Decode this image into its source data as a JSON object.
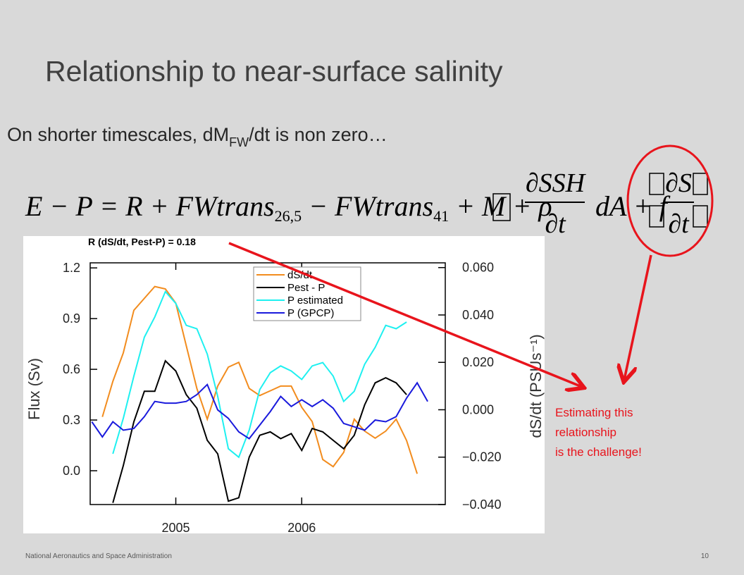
{
  "title": "Relationship to near-surface salinity",
  "subtitle": {
    "before": "On shorter timescales, dM",
    "sub": "FW",
    "after": "/dt is non zero…"
  },
  "equation": {
    "lhs": "E − P = R + FWtrans",
    "sub1": "26,5",
    "mid": " − FWtrans",
    "sub2": "41",
    "rest": " + M + ρ",
    "frac1_num": "∂SSH",
    "frac1_den": "∂t",
    "between": "dA + f",
    "frac2_num": "∂S",
    "frac2_den": "∂t"
  },
  "annotation": [
    "Estimating this",
    "relationship",
    "is the challenge!"
  ],
  "footer": "National Aeronautics and Space Administration",
  "page_number": "10",
  "chart_data": {
    "type": "line",
    "note": "R (dS/dt, Pest-P) = 0.18",
    "ylabel": "Flux (Sv)",
    "y2label": "dS/dt (PSUs⁻¹)",
    "x": [
      2004.333,
      2004.417,
      2004.5,
      2004.583,
      2004.667,
      2004.75,
      2004.833,
      2004.917,
      2005,
      2005.083,
      2005.167,
      2005.25,
      2005.333,
      2005.417,
      2005.5,
      2005.583,
      2005.667,
      2005.75,
      2005.833,
      2005.917,
      2006,
      2006.083,
      2006.167,
      2006.25,
      2006.333,
      2006.417,
      2006.5,
      2006.583,
      2006.667,
      2006.75,
      2006.833,
      2006.917,
      2007
    ],
    "xlim": [
      2004.32,
      2007.14
    ],
    "xticks": [
      2005,
      2006
    ],
    "ylim": [
      -0.2,
      1.23
    ],
    "yticks": [
      {
        "value": 0,
        "label": "0.0"
      },
      0.3,
      0.6,
      0.9,
      1.2
    ],
    "y2lim": [
      -0.04,
      0.062
    ],
    "y2ticks": [
      {
        "value": -0.04,
        "label": "−0.040"
      },
      {
        "value": -0.02,
        "label": "−0.020"
      },
      {
        "value": 0,
        "label": "0.000"
      },
      {
        "value": 0.02,
        "label": "0.020"
      },
      {
        "value": 0.04,
        "label": "0.040"
      },
      {
        "value": 0.06,
        "label": "0.060"
      }
    ],
    "legend": "upper center",
    "series": [
      {
        "name": "dS/dt",
        "color": "#f28c1e",
        "axis": "y2",
        "values": [
          null,
          -0.003,
          0.012,
          0.024,
          0.042,
          0.047,
          0.052,
          0.051,
          0.045,
          0.027,
          0.009,
          -0.004,
          0.01,
          0.018,
          0.02,
          0.009,
          0.006,
          0.008,
          0.01,
          0.01,
          0.001,
          -0.005,
          -0.021,
          -0.024,
          -0.018,
          -0.004,
          -0.009,
          -0.012,
          -0.009,
          -0.004,
          -0.013,
          -0.027,
          null
        ]
      },
      {
        "name": "Pest - P",
        "color": "#000000",
        "values": [
          null,
          null,
          -0.19,
          0.03,
          0.29,
          0.47,
          0.47,
          0.65,
          0.59,
          0.45,
          0.37,
          0.18,
          0.1,
          -0.18,
          -0.16,
          0.08,
          0.21,
          0.23,
          0.19,
          0.22,
          0.12,
          0.25,
          0.23,
          0.18,
          0.13,
          0.21,
          0.39,
          0.52,
          0.55,
          0.52,
          0.45,
          null,
          null
        ]
      },
      {
        "name": "P estimated",
        "color": "#1ef0f0",
        "values": [
          null,
          null,
          0.1,
          0.31,
          0.56,
          0.79,
          0.91,
          1.06,
          0.99,
          0.86,
          0.84,
          0.69,
          0.44,
          0.13,
          0.08,
          0.24,
          0.48,
          0.58,
          0.62,
          0.59,
          0.54,
          0.62,
          0.64,
          0.56,
          0.41,
          0.47,
          0.63,
          0.73,
          0.86,
          0.84,
          0.88,
          null,
          null
        ]
      },
      {
        "name": "P (GPCP)",
        "color": "#1a1adc",
        "values": [
          0.29,
          0.2,
          0.29,
          0.24,
          0.25,
          0.32,
          0.41,
          0.4,
          0.4,
          0.41,
          0.45,
          0.51,
          0.36,
          0.31,
          0.23,
          0.19,
          0.27,
          0.35,
          0.44,
          0.38,
          0.42,
          0.38,
          0.42,
          0.37,
          0.28,
          0.26,
          0.24,
          0.3,
          0.29,
          0.32,
          0.43,
          0.52,
          0.41
        ]
      }
    ]
  }
}
